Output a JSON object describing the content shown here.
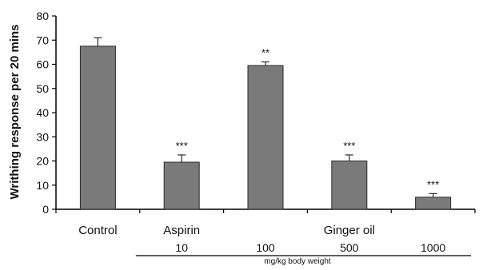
{
  "chart_data": {
    "type": "bar",
    "ylabel": "Writhing response per 20 mins",
    "xlabel": "mg/kg body weight",
    "ylim": [
      0,
      80
    ],
    "yticks": [
      0,
      10,
      20,
      30,
      40,
      50,
      60,
      70,
      80
    ],
    "grid": false,
    "legend": "none",
    "categories": [
      "Control",
      "Aspirin 10",
      "Ginger oil 100",
      "Ginger oil 500",
      "Ginger oil 1000"
    ],
    "values": [
      67.5,
      19.5,
      59.5,
      20,
      5
    ],
    "errors": [
      3.5,
      3.0,
      1.5,
      2.5,
      1.5
    ],
    "significance": [
      "",
      "***",
      "**",
      "***",
      "***"
    ],
    "group_labels": [
      "Control",
      "Aspirin",
      "Ginger oil"
    ],
    "dose_labels": [
      "",
      "10",
      "100",
      "500",
      "1000"
    ],
    "colors": {
      "bar_fill": "#7a7a7a",
      "bar_stroke": "#2a2a2a",
      "axis": "#000000"
    }
  }
}
